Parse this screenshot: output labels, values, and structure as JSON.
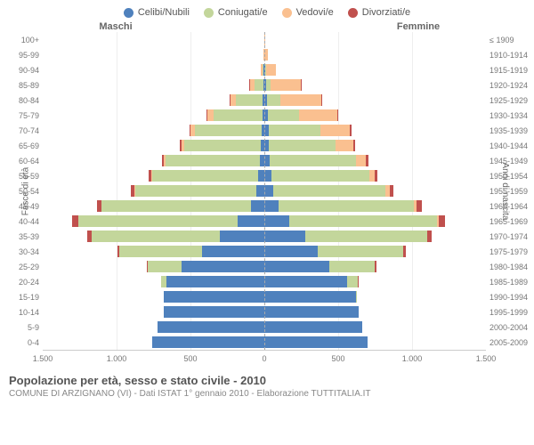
{
  "legend": [
    {
      "label": "Celibi/Nubili",
      "color": "#4f81bd"
    },
    {
      "label": "Coniugati/e",
      "color": "#c3d69b"
    },
    {
      "label": "Vedovi/e",
      "color": "#fac090"
    },
    {
      "label": "Divorziati/e",
      "color": "#c0504d"
    }
  ],
  "headers": {
    "male": "Maschi",
    "female": "Femmine"
  },
  "y_left_title": "Fasce di età",
  "y_right_title": "Anni di nascita",
  "x_ticks": [
    "1.500",
    "1.000",
    "500",
    "0",
    "500",
    "1.000",
    "1.500"
  ],
  "x_max": 1500,
  "footer_title": "Popolazione per età, sesso e stato civile - 2010",
  "footer_sub": "COMUNE DI ARZIGNANO (VI) - Dati ISTAT 1° gennaio 2010 - Elaborazione TUTTITALIA.IT",
  "colors": {
    "celibi": "#4f81bd",
    "coniugati": "#c3d69b",
    "vedovi": "#fac090",
    "divorziati": "#c0504d"
  },
  "rows": [
    {
      "age": "100+",
      "year": "≤ 1909",
      "m": [
        0,
        0,
        0,
        0
      ],
      "f": [
        0,
        0,
        5,
        0
      ]
    },
    {
      "age": "95-99",
      "year": "1910-1914",
      "m": [
        2,
        0,
        3,
        0
      ],
      "f": [
        2,
        0,
        22,
        0
      ]
    },
    {
      "age": "90-94",
      "year": "1915-1919",
      "m": [
        5,
        10,
        12,
        0
      ],
      "f": [
        5,
        5,
        70,
        0
      ]
    },
    {
      "age": "85-89",
      "year": "1920-1924",
      "m": [
        8,
        60,
        30,
        2
      ],
      "f": [
        10,
        30,
        210,
        3
      ]
    },
    {
      "age": "80-84",
      "year": "1925-1929",
      "m": [
        12,
        180,
        40,
        4
      ],
      "f": [
        18,
        90,
        280,
        5
      ]
    },
    {
      "age": "75-79",
      "year": "1930-1934",
      "m": [
        15,
        330,
        40,
        6
      ],
      "f": [
        22,
        210,
        260,
        8
      ]
    },
    {
      "age": "70-74",
      "year": "1935-1939",
      "m": [
        18,
        450,
        30,
        8
      ],
      "f": [
        28,
        350,
        200,
        10
      ]
    },
    {
      "age": "65-69",
      "year": "1940-1944",
      "m": [
        22,
        520,
        20,
        10
      ],
      "f": [
        30,
        450,
        120,
        12
      ]
    },
    {
      "age": "60-64",
      "year": "1945-1949",
      "m": [
        30,
        640,
        12,
        14
      ],
      "f": [
        38,
        580,
        70,
        16
      ]
    },
    {
      "age": "55-59",
      "year": "1950-1954",
      "m": [
        40,
        720,
        8,
        18
      ],
      "f": [
        48,
        660,
        40,
        20
      ]
    },
    {
      "age": "50-54",
      "year": "1955-1959",
      "m": [
        55,
        820,
        5,
        22
      ],
      "f": [
        62,
        760,
        25,
        24
      ]
    },
    {
      "age": "45-49",
      "year": "1960-1964",
      "m": [
        90,
        1010,
        3,
        30
      ],
      "f": [
        95,
        920,
        15,
        35
      ]
    },
    {
      "age": "40-44",
      "year": "1965-1969",
      "m": [
        180,
        1080,
        2,
        38
      ],
      "f": [
        170,
        1000,
        10,
        42
      ]
    },
    {
      "age": "35-39",
      "year": "1970-1974",
      "m": [
        300,
        870,
        1,
        28
      ],
      "f": [
        280,
        820,
        5,
        30
      ]
    },
    {
      "age": "30-34",
      "year": "1975-1979",
      "m": [
        420,
        560,
        0,
        15
      ],
      "f": [
        360,
        580,
        2,
        18
      ]
    },
    {
      "age": "25-29",
      "year": "1980-1984",
      "m": [
        560,
        230,
        0,
        5
      ],
      "f": [
        440,
        310,
        0,
        8
      ]
    },
    {
      "age": "20-24",
      "year": "1985-1989",
      "m": [
        660,
        40,
        0,
        1
      ],
      "f": [
        560,
        70,
        0,
        2
      ]
    },
    {
      "age": "15-19",
      "year": "1990-1994",
      "m": [
        680,
        2,
        0,
        0
      ],
      "f": [
        620,
        5,
        0,
        0
      ]
    },
    {
      "age": "10-14",
      "year": "1995-1999",
      "m": [
        680,
        0,
        0,
        0
      ],
      "f": [
        640,
        0,
        0,
        0
      ]
    },
    {
      "age": "5-9",
      "year": "2000-2004",
      "m": [
        720,
        0,
        0,
        0
      ],
      "f": [
        660,
        0,
        0,
        0
      ]
    },
    {
      "age": "0-4",
      "year": "2005-2009",
      "m": [
        760,
        0,
        0,
        0
      ],
      "f": [
        700,
        0,
        0,
        0
      ]
    }
  ]
}
